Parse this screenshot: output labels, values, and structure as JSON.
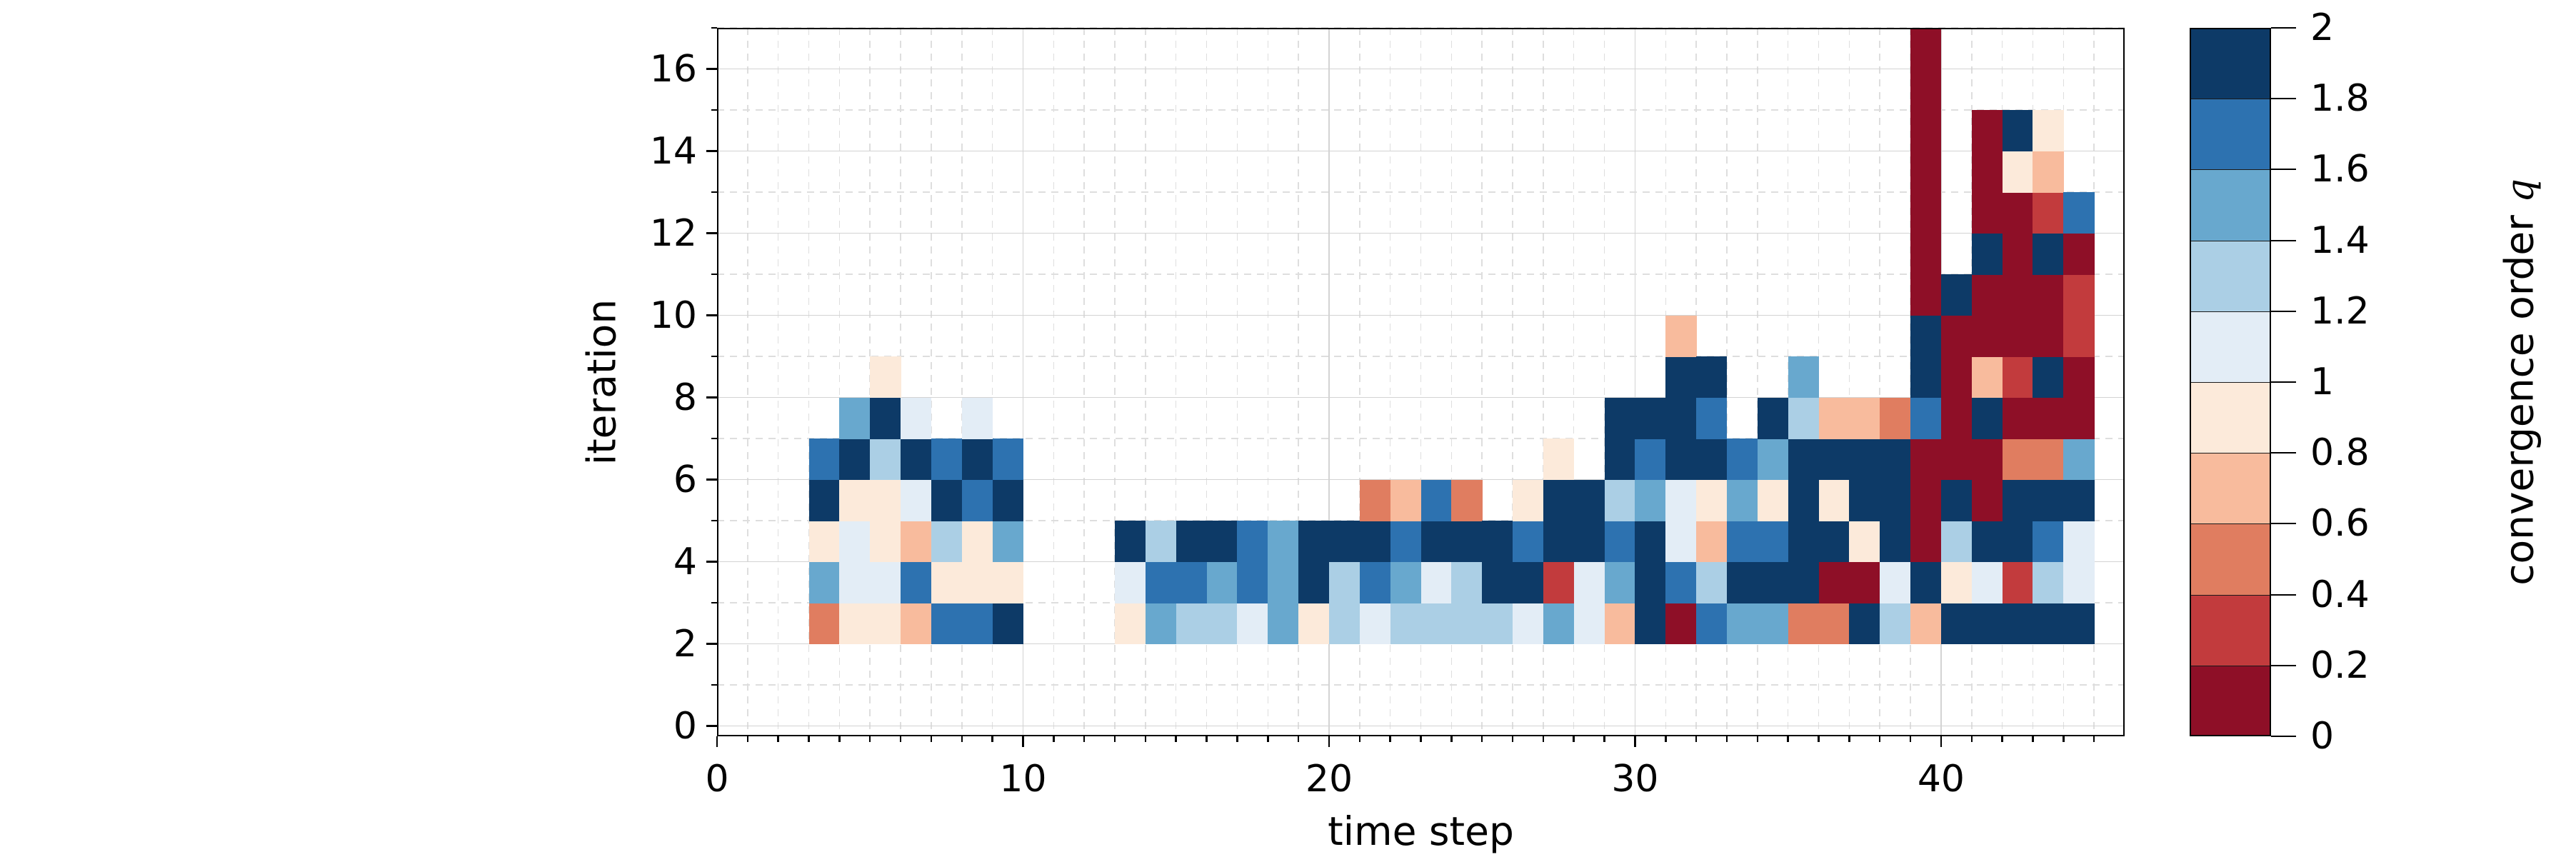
{
  "chart_data": {
    "type": "heatmap",
    "title": "",
    "xlabel": "time step",
    "ylabel": "iteration",
    "colorbar_label": "convergence order q",
    "xlim": [
      0,
      46
    ],
    "ylim": [
      -0.25,
      17
    ],
    "x_major_ticks": [
      0,
      10,
      20,
      30,
      40
    ],
    "x_minor_tick_step": 1,
    "y_major_ticks": [
      0,
      2,
      4,
      6,
      8,
      10,
      12,
      14,
      16
    ],
    "y_minor_tick_step": 1,
    "grid": "major-solid, minor-dashed",
    "legend_position": "right-colorbar",
    "value_range": [
      0,
      2
    ],
    "bin_size": 0.2,
    "colorbar_tick_labels": [
      "2",
      "1.8",
      "1.6",
      "1.4",
      "1.2",
      "1",
      "0.8",
      "0.6",
      "0.4",
      "0.2",
      "0"
    ],
    "bins": [
      {
        "range": [
          0.0,
          0.2
        ],
        "color": "#8e0f27"
      },
      {
        "range": [
          0.2,
          0.4
        ],
        "color": "#c23b3d"
      },
      {
        "range": [
          0.4,
          0.6
        ],
        "color": "#e07d60"
      },
      {
        "range": [
          0.6,
          0.8
        ],
        "color": "#f8bb9d"
      },
      {
        "range": [
          0.8,
          1.0
        ],
        "color": "#fceada"
      },
      {
        "range": [
          1.0,
          1.2
        ],
        "color": "#e3edf6"
      },
      {
        "range": [
          1.2,
          1.4
        ],
        "color": "#abcfe5"
      },
      {
        "range": [
          1.4,
          1.6
        ],
        "color": "#68a8ce"
      },
      {
        "range": [
          1.6,
          1.8
        ],
        "color": "#2d72b0"
      },
      {
        "range": [
          1.8,
          2.0
        ],
        "color": "#0d3a67"
      }
    ],
    "columns": [
      {
        "t": 3,
        "start_iter": 2,
        "q": [
          0.5,
          1.5,
          0.9,
          1.9,
          1.7
        ]
      },
      {
        "t": 4,
        "start_iter": 2,
        "q": [
          0.9,
          1.1,
          1.1,
          0.9,
          1.9,
          1.5
        ]
      },
      {
        "t": 5,
        "start_iter": 2,
        "q": [
          0.9,
          1.1,
          0.9,
          0.9,
          1.3,
          1.9,
          0.9
        ]
      },
      {
        "t": 6,
        "start_iter": 2,
        "q": [
          0.7,
          1.7,
          0.7,
          1.1,
          1.9,
          1.1
        ]
      },
      {
        "t": 7,
        "start_iter": 2,
        "q": [
          1.7,
          0.9,
          1.3,
          1.9,
          1.7
        ]
      },
      {
        "t": 8,
        "start_iter": 2,
        "q": [
          1.7,
          0.9,
          0.9,
          1.7,
          1.9,
          1.1
        ]
      },
      {
        "t": 9,
        "start_iter": 2,
        "q": [
          1.9,
          0.9,
          1.5,
          1.9,
          1.7
        ]
      },
      {
        "t": 13,
        "start_iter": 2,
        "q": [
          0.9,
          1.1,
          1.9
        ]
      },
      {
        "t": 14,
        "start_iter": 2,
        "q": [
          1.5,
          1.7,
          1.3
        ]
      },
      {
        "t": 15,
        "start_iter": 2,
        "q": [
          1.3,
          1.7,
          1.9
        ]
      },
      {
        "t": 16,
        "start_iter": 2,
        "q": [
          1.3,
          1.5,
          1.9
        ]
      },
      {
        "t": 17,
        "start_iter": 2,
        "q": [
          1.1,
          1.7,
          1.7
        ]
      },
      {
        "t": 18,
        "start_iter": 2,
        "q": [
          1.5,
          1.5,
          1.5
        ]
      },
      {
        "t": 19,
        "start_iter": 2,
        "q": [
          0.9,
          1.9,
          1.9
        ]
      },
      {
        "t": 20,
        "start_iter": 2,
        "q": [
          1.3,
          1.3,
          1.9
        ]
      },
      {
        "t": 21,
        "start_iter": 2,
        "q": [
          1.1,
          1.7,
          1.9,
          0.5
        ]
      },
      {
        "t": 22,
        "start_iter": 2,
        "q": [
          1.3,
          1.5,
          1.7,
          0.7
        ]
      },
      {
        "t": 23,
        "start_iter": 2,
        "q": [
          1.3,
          1.1,
          1.9,
          1.7
        ]
      },
      {
        "t": 24,
        "start_iter": 2,
        "q": [
          1.3,
          1.3,
          1.9,
          0.5
        ]
      },
      {
        "t": 25,
        "start_iter": 2,
        "q": [
          1.3,
          1.9,
          1.9
        ]
      },
      {
        "t": 26,
        "start_iter": 2,
        "q": [
          1.1,
          1.9,
          1.7,
          0.9
        ]
      },
      {
        "t": 27,
        "start_iter": 2,
        "q": [
          1.5,
          0.3,
          1.9,
          1.9,
          0.9
        ]
      },
      {
        "t": 28,
        "start_iter": 2,
        "q": [
          1.1,
          1.1,
          1.9,
          1.9
        ]
      },
      {
        "t": 29,
        "start_iter": 2,
        "q": [
          0.7,
          1.5,
          1.7,
          1.3,
          1.9,
          1.9
        ]
      },
      {
        "t": 30,
        "start_iter": 2,
        "q": [
          1.9,
          1.9,
          1.9,
          1.5,
          1.7,
          1.9
        ]
      },
      {
        "t": 31,
        "start_iter": 2,
        "q": [
          0.1,
          1.7,
          1.1,
          1.1,
          1.9,
          1.9,
          1.9,
          0.7
        ]
      },
      {
        "t": 32,
        "start_iter": 2,
        "q": [
          1.7,
          1.3,
          0.7,
          0.9,
          1.9,
          1.7,
          1.9
        ]
      },
      {
        "t": 33,
        "start_iter": 2,
        "q": [
          1.5,
          1.9,
          1.7,
          1.5,
          1.7
        ]
      },
      {
        "t": 34,
        "start_iter": 2,
        "q": [
          1.5,
          1.9,
          1.7,
          0.9,
          1.5,
          1.9
        ]
      },
      {
        "t": 35,
        "start_iter": 2,
        "q": [
          0.5,
          1.9,
          1.9,
          1.9,
          1.9,
          1.3,
          1.5
        ]
      },
      {
        "t": 36,
        "start_iter": 2,
        "q": [
          0.5,
          0.1,
          1.9,
          0.9,
          1.9,
          0.7
        ]
      },
      {
        "t": 37,
        "start_iter": 2,
        "q": [
          1.9,
          0.1,
          0.9,
          1.9,
          1.9,
          0.7
        ]
      },
      {
        "t": 38,
        "start_iter": 2,
        "q": [
          1.3,
          1.1,
          1.9,
          1.9,
          1.9,
          0.5
        ]
      },
      {
        "t": 39,
        "start_iter": 2,
        "q": [
          0.7,
          1.9,
          0.1,
          0.1,
          0.1,
          1.7,
          1.9,
          1.9,
          0.1,
          0.1,
          0.1,
          0.1,
          0.1,
          0.1,
          0.1
        ]
      },
      {
        "t": 40,
        "start_iter": 2,
        "q": [
          1.9,
          0.9,
          1.3,
          1.9,
          0.1,
          0.1,
          0.1,
          0.1,
          1.9
        ]
      },
      {
        "t": 41,
        "start_iter": 2,
        "q": [
          1.9,
          1.1,
          1.9,
          0.1,
          0.1,
          1.9,
          0.7,
          0.1,
          0.1,
          1.9,
          0.1,
          0.1,
          0.1
        ]
      },
      {
        "t": 42,
        "start_iter": 2,
        "q": [
          1.9,
          0.3,
          1.9,
          1.9,
          0.5,
          0.1,
          0.3,
          0.1,
          0.1,
          0.1,
          0.1,
          0.9,
          1.9
        ]
      },
      {
        "t": 43,
        "start_iter": 2,
        "q": [
          1.9,
          1.3,
          1.7,
          1.9,
          0.5,
          0.1,
          1.9,
          0.1,
          0.1,
          1.9,
          0.3,
          0.7,
          0.9
        ]
      },
      {
        "t": 44,
        "start_iter": 2,
        "q": [
          1.9,
          1.1,
          1.1,
          1.9,
          1.5,
          0.1,
          0.1,
          0.3,
          0.3,
          0.1,
          1.7
        ]
      }
    ]
  }
}
